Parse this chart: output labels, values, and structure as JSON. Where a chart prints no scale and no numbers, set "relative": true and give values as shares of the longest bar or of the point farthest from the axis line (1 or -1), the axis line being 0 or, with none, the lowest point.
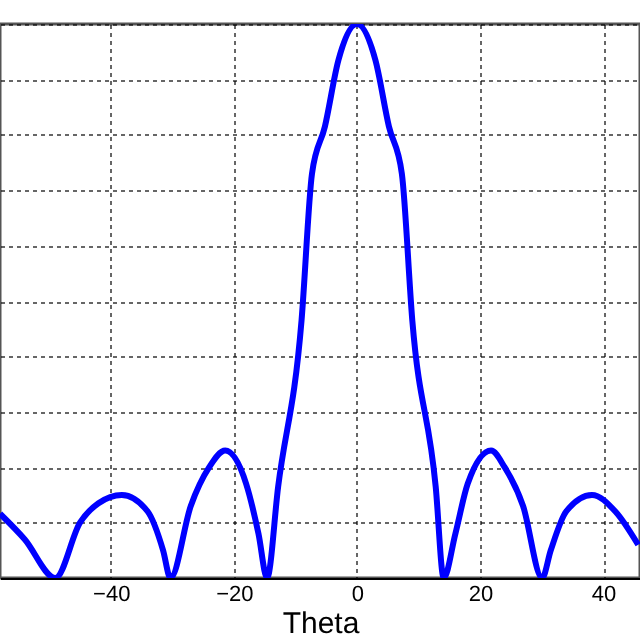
{
  "chart_data": {
    "type": "line",
    "relative": true,
    "xlabel": "Theta",
    "x": [
      -58,
      -54,
      -49,
      -45,
      -42,
      -38.2,
      -34,
      -31.5,
      -30.3,
      -27,
      -24,
      -21.4,
      -18,
      -16,
      -14.6,
      -12.8,
      -9,
      -7.3,
      -5.2,
      -3,
      0,
      3,
      5.2,
      7.3,
      9,
      12.8,
      14.1,
      16,
      18,
      21.8,
      24,
      27,
      30.1,
      31.5,
      34,
      38.2,
      42,
      45.7
    ],
    "series": [
      {
        "color": "#0000ff",
        "values": [
          0.116,
          0.07,
          0,
          0.1,
          0.135,
          0.15,
          0.12,
          0.05,
          0,
          0.13,
          0.2,
          0.23,
          0.17,
          0.08,
          0,
          0.165,
          0.465,
          0.73,
          0.815,
          0.935,
          1,
          0.935,
          0.815,
          0.73,
          0.465,
          0.165,
          0,
          0.08,
          0.17,
          0.23,
          0.2,
          0.13,
          0,
          0.05,
          0.12,
          0.15,
          0.12,
          0.06
        ]
      }
    ],
    "xlim": [
      -58,
      46
    ],
    "xticks": [
      -40,
      -20,
      0,
      20,
      40
    ],
    "grid": true,
    "tick_labels": "x",
    "line_style": "solid",
    "marker": "none"
  }
}
